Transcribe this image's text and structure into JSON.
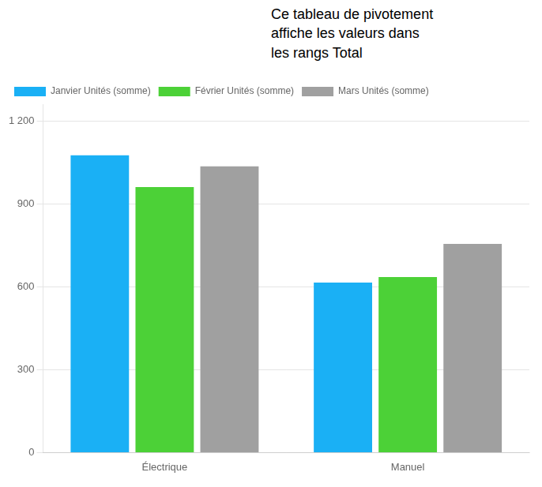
{
  "chart_data": {
    "type": "bar",
    "annotation": "Ce tableau de pivotement\naffiche les valeurs dans\nles rangs Total",
    "categories": [
      "Électrique",
      "Manuel"
    ],
    "series": [
      {
        "name": "Janvier Unités (somme)",
        "color": "#1ab0f5",
        "values": [
          1075,
          615
        ]
      },
      {
        "name": "Février Unités (somme)",
        "color": "#4cd137",
        "values": [
          960,
          635
        ]
      },
      {
        "name": "Mars Unités (somme)",
        "color": "#a0a0a0",
        "values": [
          1035,
          755
        ]
      }
    ],
    "ylim": [
      0,
      1260
    ],
    "yticks": [
      0,
      300,
      600,
      900,
      {
        "value": 1200,
        "label": "1 200"
      }
    ],
    "grid": true,
    "legend": "upper left"
  }
}
